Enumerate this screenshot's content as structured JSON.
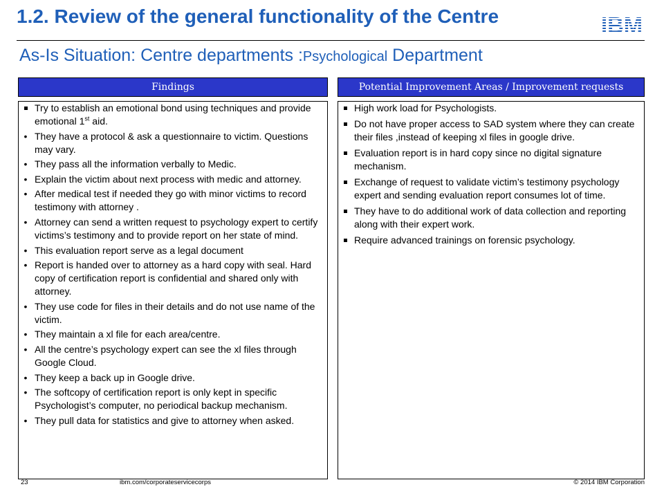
{
  "slide": {
    "title": "1.2. Review of the general functionality of the Centre",
    "subtitle_main": "As-Is Situation: Centre departments :",
    "subtitle_small": "Psychological",
    "subtitle_end": " Department",
    "logo_text": "IBM",
    "logo_color": "#1f5fb8"
  },
  "findings": {
    "header": "Findings",
    "items": [
      {
        "text": "Try to establish an emotional bond using techniques and provide emotional 1",
        "sup": "st",
        "tail": " aid."
      },
      {
        "text": "They have a protocol & ask a questionnaire to victim. Questions may vary."
      },
      {
        "text": "They pass all the information verbally to Medic."
      },
      {
        "text": "Explain the victim about next process with medic and attorney."
      },
      {
        "text": "After medical test if needed they go with minor victims to record testimony with attorney ."
      },
      {
        "text": "Attorney can send a written request to psychology  expert to certify victims’s testimony and to provide report on her state of mind."
      },
      {
        "text": "This evaluation report serve as a legal document"
      },
      {
        "text": "Report is handed over to attorney as a hard copy with seal. Hard copy of certification report is confidential and shared only with attorney."
      },
      {
        "text": "They use code for files in their details and do not use name of the victim."
      },
      {
        "text": "They maintain a xl file for each area/centre."
      },
      {
        "text": "All the centre’s psychology expert can see the xl files through Google Cloud."
      },
      {
        "text": "They keep a back up in Google drive."
      },
      {
        "text": "The softcopy of certification report is only kept in specific Psychologist’s computer, no periodical backup mechanism."
      },
      {
        "text": "They pull data for statistics and give to attorney when asked."
      }
    ]
  },
  "improvements": {
    "header": "Potential Improvement Areas / Improvement requests",
    "items": [
      "High work load for Psychologists.",
      "Do not have proper access to SAD system where they can create their files ,instead of keeping xl files in google drive.",
      "Evaluation report is in hard copy since no digital signature mechanism.",
      "Exchange of request to validate victim’s testimony psychology expert and sending evaluation report consumes lot of time.",
      "They have to do additional work of data collection and reporting along with their expert work.",
      "Require advanced trainings on forensic psychology."
    ]
  },
  "footer": {
    "page_number": "23",
    "url": "ibm.com/corporateservicecorps",
    "copyright": "© 2014 IBM  Corporation"
  }
}
